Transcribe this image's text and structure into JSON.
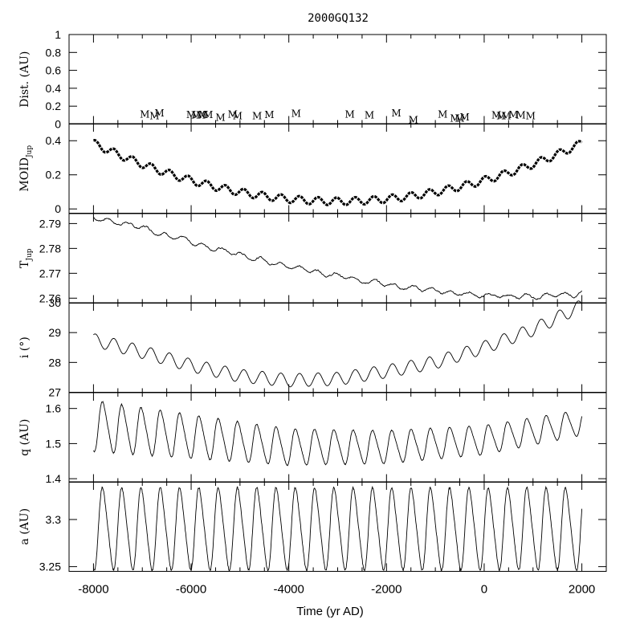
{
  "chart_data": {
    "type": "line",
    "title": "2000GQ132",
    "xlabel": "Time (yr AD)",
    "xlim": [
      -8500,
      2500
    ],
    "xticks": [
      -8000,
      -6000,
      -4000,
      -2000,
      0,
      2000
    ],
    "x_minor_step": 500,
    "x_start": -8000,
    "x_end": 2000,
    "panels": [
      {
        "key": "dist",
        "ylabel": "Dist. (AU)",
        "ylabel_main": "Dist. (AU)",
        "ylabel_sub": "",
        "ylim": [
          0,
          1
        ],
        "yticks": [
          0,
          0.2,
          0.4,
          0.6,
          0.8,
          1
        ],
        "ytick_labels": [
          "0",
          "0.2",
          "0.4",
          "0.6",
          "0.8",
          "1"
        ],
        "encounter_marker": "M",
        "encounters": [
          {
            "x": -6950,
            "y": 0.065
          },
          {
            "x": -6750,
            "y": 0.045
          },
          {
            "x": -6650,
            "y": 0.075
          },
          {
            "x": -6000,
            "y": 0.06
          },
          {
            "x": -5900,
            "y": 0.055
          },
          {
            "x": -5800,
            "y": 0.055
          },
          {
            "x": -5750,
            "y": 0.06
          },
          {
            "x": -5650,
            "y": 0.06
          },
          {
            "x": -5400,
            "y": 0.025
          },
          {
            "x": -5150,
            "y": 0.065
          },
          {
            "x": -5050,
            "y": 0.045
          },
          {
            "x": -4650,
            "y": 0.045
          },
          {
            "x": -4400,
            "y": 0.06
          },
          {
            "x": -3850,
            "y": 0.07
          },
          {
            "x": -2750,
            "y": 0.065
          },
          {
            "x": -2350,
            "y": 0.055
          },
          {
            "x": -1800,
            "y": 0.075
          },
          {
            "x": -1450,
            "y": 0.0
          },
          {
            "x": -850,
            "y": 0.065
          },
          {
            "x": -600,
            "y": 0.02
          },
          {
            "x": -500,
            "y": 0.02
          },
          {
            "x": -400,
            "y": 0.03
          },
          {
            "x": 250,
            "y": 0.055
          },
          {
            "x": 350,
            "y": 0.045
          },
          {
            "x": 450,
            "y": 0.045
          },
          {
            "x": 600,
            "y": 0.06
          },
          {
            "x": 750,
            "y": 0.055
          },
          {
            "x": 950,
            "y": 0.045
          }
        ]
      },
      {
        "key": "moid",
        "ylabel": "MOID Jup",
        "ylabel_main": "MOID",
        "ylabel_sub": "Jup",
        "ylim": [
          -0.025,
          0.5
        ],
        "yticks": [
          0,
          0.2,
          0.4
        ],
        "ytick_labels": [
          "0",
          "0.2",
          "0.4"
        ],
        "trend_poly": [
          0.045,
          0.34
        ],
        "osc_amp": 0.022,
        "osc_period": 380,
        "osc_phase": 0.2
      },
      {
        "key": "tjup",
        "ylabel": "T Jup",
        "ylabel_main": "T",
        "ylabel_sub": "Jup",
        "ylim": [
          2.758,
          2.794
        ],
        "yticks": [
          2.76,
          2.77,
          2.78,
          2.79
        ],
        "ytick_labels": [
          "2.76",
          "2.77",
          "2.78",
          "2.79"
        ],
        "points": [
          [
            -8000,
            2.7925
          ],
          [
            -7000,
            2.7885
          ],
          [
            -6000,
            2.7825
          ],
          [
            -5000,
            2.7775
          ],
          [
            -4000,
            2.773
          ],
          [
            -3000,
            2.769
          ],
          [
            -2000,
            2.7655
          ],
          [
            -1000,
            2.763
          ],
          [
            0,
            2.761
          ],
          [
            1000,
            2.7605
          ],
          [
            2000,
            2.762
          ]
        ]
      },
      {
        "key": "incl",
        "ylabel": "i (°)",
        "ylabel_main": "i (°)",
        "ylabel_sub": "",
        "ylim": [
          27,
          30
        ],
        "yticks": [
          27,
          28,
          29,
          30
        ],
        "ytick_labels": [
          "27",
          "28",
          "29",
          "30"
        ],
        "osc_amp": 0.22,
        "osc_period": 380,
        "osc_phase": 0.2,
        "points": [
          [
            -8000,
            28.75
          ],
          [
            -7000,
            28.35
          ],
          [
            -6000,
            27.9
          ],
          [
            -5000,
            27.55
          ],
          [
            -4000,
            27.4
          ],
          [
            -3000,
            27.45
          ],
          [
            -2000,
            27.7
          ],
          [
            -1000,
            28.0
          ],
          [
            0,
            28.5
          ],
          [
            1000,
            29.1
          ],
          [
            2000,
            29.9
          ]
        ]
      },
      {
        "key": "q",
        "ylabel": "q (AU)",
        "ylabel_main": "q (AU)",
        "ylabel_sub": "",
        "ylim": [
          1.39,
          1.645
        ],
        "yticks": [
          1.4,
          1.5,
          1.6
        ],
        "ytick_labels": [
          "1.4",
          "1.5",
          "1.6"
        ],
        "osc_period": 395,
        "osc_phase": 0.0,
        "center": [
          [
            -8000,
            1.55
          ],
          [
            -6000,
            1.52
          ],
          [
            -4000,
            1.49
          ],
          [
            -2000,
            1.49
          ],
          [
            0,
            1.51
          ],
          [
            2000,
            1.56
          ]
        ],
        "amp": [
          [
            -8000,
            0.07
          ],
          [
            -6000,
            0.06
          ],
          [
            -4000,
            0.05
          ],
          [
            -2000,
            0.045
          ],
          [
            0,
            0.04
          ],
          [
            2000,
            0.035
          ]
        ]
      },
      {
        "key": "a",
        "ylabel": "a (AU)",
        "ylabel_main": "a (AU)",
        "ylabel_sub": "",
        "ylim": [
          3.245,
          3.34
        ],
        "yticks": [
          3.25,
          3.3
        ],
        "ytick_labels": [
          "3.25",
          "3.3"
        ],
        "osc_period": 395,
        "osc_phase": 0.0,
        "center": 3.29,
        "amp": 0.042
      }
    ]
  }
}
